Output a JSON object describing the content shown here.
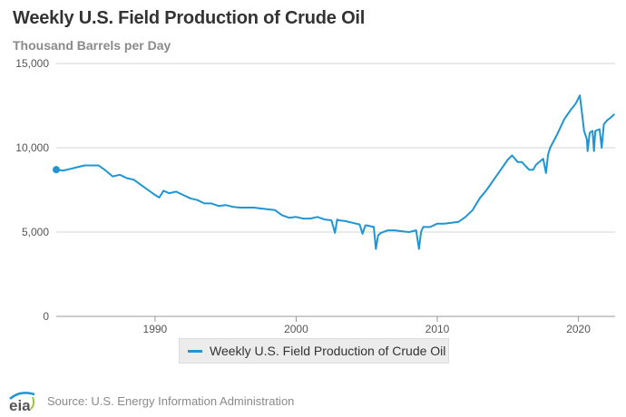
{
  "chart_data": {
    "type": "line",
    "title": "Weekly U.S. Field Production of Crude Oil",
    "subtitle": "Thousand Barrels per Day",
    "x_range": [
      1983,
      2022.6
    ],
    "ylim": [
      0,
      15000
    ],
    "y_ticks": [
      0,
      5000,
      10000,
      15000
    ],
    "y_tick_labels": [
      "0",
      "5,000",
      "10,000",
      "15,000"
    ],
    "x_ticks": [
      1990,
      2000,
      2010,
      2020
    ],
    "x_tick_labels": [
      "1990",
      "2000",
      "2010",
      "2020"
    ],
    "grid": "horizontal",
    "legend_position": "bottom-center",
    "series": [
      {
        "name": "Weekly U.S. Field Production of Crude Oil",
        "color": "#1f96d3",
        "points": [
          [
            1983.0,
            8700
          ],
          [
            1983.5,
            8650
          ],
          [
            1984.0,
            8750
          ],
          [
            1984.5,
            8850
          ],
          [
            1985.0,
            8950
          ],
          [
            1985.5,
            8950
          ],
          [
            1986.0,
            8950
          ],
          [
            1986.5,
            8650
          ],
          [
            1987.0,
            8300
          ],
          [
            1987.5,
            8400
          ],
          [
            1988.0,
            8200
          ],
          [
            1988.5,
            8100
          ],
          [
            1989.0,
            7800
          ],
          [
            1989.5,
            7500
          ],
          [
            1990.0,
            7200
          ],
          [
            1990.3,
            7050
          ],
          [
            1990.6,
            7450
          ],
          [
            1991.0,
            7300
          ],
          [
            1991.5,
            7400
          ],
          [
            1992.0,
            7200
          ],
          [
            1992.5,
            7000
          ],
          [
            1993.0,
            6900
          ],
          [
            1993.5,
            6700
          ],
          [
            1994.0,
            6700
          ],
          [
            1994.5,
            6550
          ],
          [
            1995.0,
            6600
          ],
          [
            1995.5,
            6500
          ],
          [
            1996.0,
            6450
          ],
          [
            1996.5,
            6450
          ],
          [
            1997.0,
            6450
          ],
          [
            1997.5,
            6400
          ],
          [
            1998.0,
            6350
          ],
          [
            1998.5,
            6300
          ],
          [
            1999.0,
            6000
          ],
          [
            1999.5,
            5850
          ],
          [
            2000.0,
            5900
          ],
          [
            2000.5,
            5800
          ],
          [
            2001.0,
            5800
          ],
          [
            2001.5,
            5900
          ],
          [
            2002.0,
            5750
          ],
          [
            2002.5,
            5700
          ],
          [
            2002.75,
            4950
          ],
          [
            2002.9,
            5750
          ],
          [
            2003.0,
            5700
          ],
          [
            2003.5,
            5650
          ],
          [
            2004.0,
            5550
          ],
          [
            2004.5,
            5450
          ],
          [
            2004.7,
            4900
          ],
          [
            2004.9,
            5400
          ],
          [
            2005.0,
            5400
          ],
          [
            2005.5,
            5300
          ],
          [
            2005.65,
            4000
          ],
          [
            2005.8,
            4800
          ],
          [
            2006.0,
            4950
          ],
          [
            2006.5,
            5100
          ],
          [
            2007.0,
            5100
          ],
          [
            2007.5,
            5050
          ],
          [
            2008.0,
            5000
          ],
          [
            2008.5,
            5100
          ],
          [
            2008.7,
            4000
          ],
          [
            2008.85,
            5000
          ],
          [
            2009.0,
            5300
          ],
          [
            2009.5,
            5300
          ],
          [
            2010.0,
            5500
          ],
          [
            2010.5,
            5500
          ],
          [
            2011.0,
            5550
          ],
          [
            2011.5,
            5600
          ],
          [
            2012.0,
            5900
          ],
          [
            2012.5,
            6300
          ],
          [
            2013.0,
            7000
          ],
          [
            2013.5,
            7500
          ],
          [
            2014.0,
            8100
          ],
          [
            2014.5,
            8700
          ],
          [
            2015.0,
            9300
          ],
          [
            2015.3,
            9550
          ],
          [
            2015.7,
            9150
          ],
          [
            2016.0,
            9150
          ],
          [
            2016.5,
            8700
          ],
          [
            2016.8,
            8700
          ],
          [
            2017.0,
            9000
          ],
          [
            2017.5,
            9350
          ],
          [
            2017.7,
            8500
          ],
          [
            2017.85,
            9600
          ],
          [
            2018.0,
            10000
          ],
          [
            2018.5,
            10800
          ],
          [
            2019.0,
            11700
          ],
          [
            2019.5,
            12300
          ],
          [
            2019.8,
            12600
          ],
          [
            2020.1,
            13100
          ],
          [
            2020.25,
            12100
          ],
          [
            2020.4,
            11000
          ],
          [
            2020.6,
            10500
          ],
          [
            2020.65,
            9800
          ],
          [
            2020.8,
            10900
          ],
          [
            2021.0,
            11000
          ],
          [
            2021.1,
            9800
          ],
          [
            2021.2,
            11000
          ],
          [
            2021.5,
            11100
          ],
          [
            2021.65,
            10000
          ],
          [
            2021.8,
            11400
          ],
          [
            2022.0,
            11600
          ],
          [
            2022.3,
            11800
          ],
          [
            2022.55,
            12000
          ]
        ]
      }
    ]
  },
  "legend": {
    "label": "Weekly U.S. Field Production of Crude Oil"
  },
  "footer": {
    "logo_text": "eia",
    "source": "Source: U.S. Energy Information Administration"
  }
}
